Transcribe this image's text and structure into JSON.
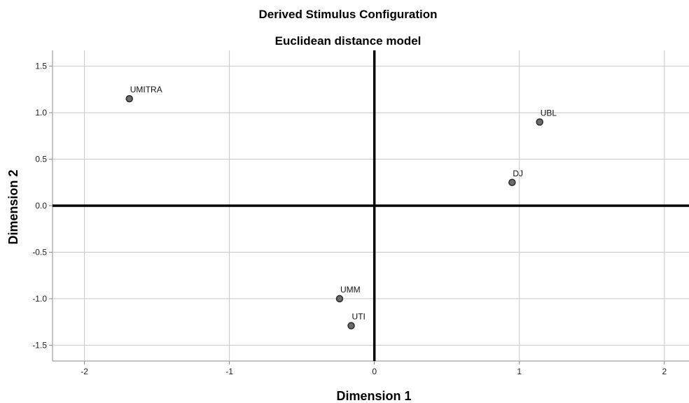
{
  "chart_data": {
    "type": "scatter",
    "title": "Derived Stimulus Configuration",
    "subtitle": "Euclidean distance model",
    "xlabel": "Dimension 1",
    "ylabel": "Dimension 2",
    "xlim": [
      -2.22,
      2.17
    ],
    "ylim": [
      -1.67,
      1.67
    ],
    "xticks": [
      -2,
      -1,
      0,
      1,
      2
    ],
    "xtick_labels": [
      "-2",
      "-1",
      "0",
      "1",
      "2"
    ],
    "yticks": [
      1.5,
      1.0,
      0.5,
      0.0,
      -0.5,
      -1.0,
      -1.5
    ],
    "ytick_labels": [
      "1.5",
      "1.0",
      "0.5",
      "0.0",
      "-0.5",
      "-1.0",
      "-1.5"
    ],
    "grid": true,
    "reference_lines": {
      "x": 0,
      "y": 0
    },
    "points": [
      {
        "label": "UMITRA",
        "x": -1.69,
        "y": 1.15
      },
      {
        "label": "UBL",
        "x": 1.14,
        "y": 0.9
      },
      {
        "label": "DJ",
        "x": 0.95,
        "y": 0.25
      },
      {
        "label": "UMM",
        "x": -0.24,
        "y": -1.0
      },
      {
        "label": "UTI",
        "x": -0.16,
        "y": -1.29
      }
    ],
    "colors": {
      "marker_fill": "#6b6b6b",
      "marker_stroke": "#2a2a2a",
      "grid": "#c8c8c8",
      "reference_line": "#000000"
    }
  }
}
